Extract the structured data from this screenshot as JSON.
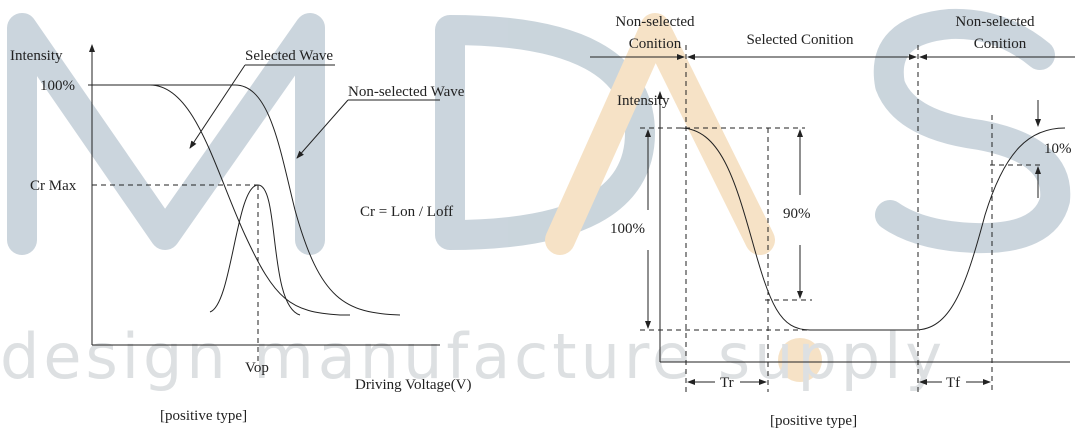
{
  "watermark": {
    "tagline": "design manufacture supply"
  },
  "left_diagram": {
    "y_label": "Intensity",
    "level_100": "100%",
    "cr_max": "Cr Max",
    "selected_wave": "Selected Wave",
    "non_selected_wave": "Non-selected Wave",
    "formula": "Cr = Lon / Loff",
    "vop": "Vop",
    "x_label": "Driving Voltage(V)",
    "caption": "[positive type]"
  },
  "right_diagram": {
    "non_selected_left": [
      "Non-selected",
      "Conition"
    ],
    "selected": "Selected Conition",
    "non_selected_right": [
      "Non-selected",
      "Conition"
    ],
    "y_label": "Intensity",
    "level_100": "100%",
    "level_90": "90%",
    "level_10": "10%",
    "tr": "Tr",
    "tf": "Tf",
    "caption": "[positive type]"
  }
}
